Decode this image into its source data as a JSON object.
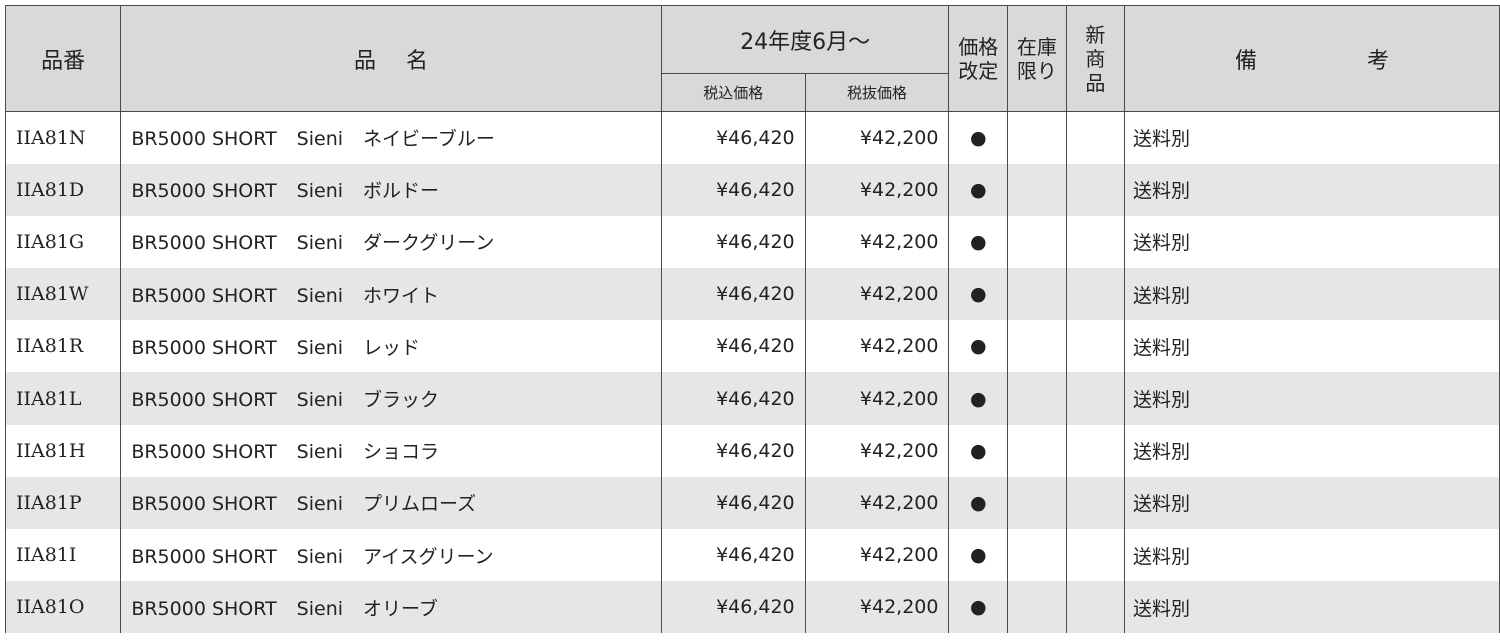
{
  "header": {
    "code": "品番",
    "name": "品名",
    "period": "24年度6月〜",
    "tax_incl": "税込価格",
    "tax_excl": "税抜価格",
    "price_revised": [
      "価格",
      "改定"
    ],
    "stock_limited": [
      "在庫",
      "限り"
    ],
    "new_product": [
      "新",
      "商",
      "品"
    ],
    "notes": "備考"
  },
  "rows": [
    {
      "code": "IIA81N",
      "model": "BR5000 SHORT",
      "series": "Sieni",
      "color": "ネイビーブルー",
      "tax_incl": "¥46,420",
      "tax_excl": "¥42,200",
      "revised": "●",
      "limited": "",
      "new": "",
      "note": "送料別"
    },
    {
      "code": "IIA81D",
      "model": "BR5000 SHORT",
      "series": "Sieni",
      "color": "ボルドー",
      "tax_incl": "¥46,420",
      "tax_excl": "¥42,200",
      "revised": "●",
      "limited": "",
      "new": "",
      "note": "送料別"
    },
    {
      "code": "IIA81G",
      "model": "BR5000 SHORT",
      "series": "Sieni",
      "color": "ダークグリーン",
      "tax_incl": "¥46,420",
      "tax_excl": "¥42,200",
      "revised": "●",
      "limited": "",
      "new": "",
      "note": "送料別"
    },
    {
      "code": "IIA81W",
      "model": "BR5000 SHORT",
      "series": "Sieni",
      "color": "ホワイト",
      "tax_incl": "¥46,420",
      "tax_excl": "¥42,200",
      "revised": "●",
      "limited": "",
      "new": "",
      "note": "送料別"
    },
    {
      "code": "IIA81R",
      "model": "BR5000 SHORT",
      "series": "Sieni",
      "color": "レッド",
      "tax_incl": "¥46,420",
      "tax_excl": "¥42,200",
      "revised": "●",
      "limited": "",
      "new": "",
      "note": "送料別"
    },
    {
      "code": "IIA81L",
      "model": "BR5000 SHORT",
      "series": "Sieni",
      "color": "ブラック",
      "tax_incl": "¥46,420",
      "tax_excl": "¥42,200",
      "revised": "●",
      "limited": "",
      "new": "",
      "note": "送料別"
    },
    {
      "code": "IIA81H",
      "model": "BR5000 SHORT",
      "series": "Sieni",
      "color": "ショコラ",
      "tax_incl": "¥46,420",
      "tax_excl": "¥42,200",
      "revised": "●",
      "limited": "",
      "new": "",
      "note": "送料別"
    },
    {
      "code": "IIA81P",
      "model": "BR5000 SHORT",
      "series": "Sieni",
      "color": "プリムローズ",
      "tax_incl": "¥46,420",
      "tax_excl": "¥42,200",
      "revised": "●",
      "limited": "",
      "new": "",
      "note": "送料別"
    },
    {
      "code": "IIA81I",
      "model": "BR5000 SHORT",
      "series": "Sieni",
      "color": "アイスグリーン",
      "tax_incl": "¥46,420",
      "tax_excl": "¥42,200",
      "revised": "●",
      "limited": "",
      "new": "",
      "note": "送料別"
    },
    {
      "code": "IIA81O",
      "model": "BR5000 SHORT",
      "series": "Sieni",
      "color": "オリーブ",
      "tax_incl": "¥46,420",
      "tax_excl": "¥42,200",
      "revised": "●",
      "limited": "",
      "new": "",
      "note": "送料別"
    }
  ]
}
